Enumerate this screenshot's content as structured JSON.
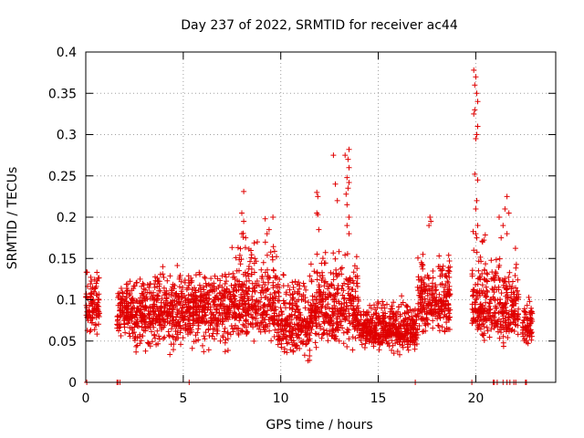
{
  "chart_data": {
    "type": "scatter",
    "title": "Day 237 of 2022, SRMTID for receiver ac44",
    "xlabel": "GPS time / hours",
    "ylabel": "SRMTID / TECUs",
    "xlim": [
      0,
      24.1
    ],
    "ylim": [
      0,
      0.4
    ],
    "x_ticks": [
      0,
      5,
      10,
      15,
      20
    ],
    "x_tick_labels": [
      "0",
      "5",
      "10",
      "15",
      "20"
    ],
    "y_ticks": [
      0,
      0.05,
      0.1,
      0.15,
      0.2,
      0.25,
      0.3,
      0.35,
      0.4
    ],
    "y_tick_labels": [
      "0",
      "0.05",
      "0.1",
      "0.15",
      "0.2",
      "0.25",
      "0.3",
      "0.35",
      "0.4"
    ],
    "grid": true,
    "marker": "plus",
    "series_color": "#e00000",
    "segments": [
      {
        "x_start": 0.0,
        "x_end": 0.7,
        "min": 0.05,
        "max": 0.15,
        "center": 0.09
      },
      {
        "x_start": 1.6,
        "x_end": 2.5,
        "min": 0.04,
        "max": 0.14,
        "center": 0.085
      },
      {
        "x_start": 2.5,
        "x_end": 5.0,
        "min": 0.03,
        "max": 0.15,
        "center": 0.085
      },
      {
        "x_start": 5.0,
        "x_end": 7.5,
        "min": 0.03,
        "max": 0.145,
        "center": 0.09
      },
      {
        "x_start": 7.5,
        "x_end": 9.8,
        "min": 0.04,
        "max": 0.2,
        "center": 0.095
      },
      {
        "x_start": 9.8,
        "x_end": 11.5,
        "min": 0.02,
        "max": 0.15,
        "center": 0.07
      },
      {
        "x_start": 11.5,
        "x_end": 12.5,
        "min": 0.04,
        "max": 0.17,
        "center": 0.085
      },
      {
        "x_start": 12.5,
        "x_end": 14.0,
        "min": 0.03,
        "max": 0.18,
        "center": 0.09
      },
      {
        "x_start": 14.0,
        "x_end": 17.0,
        "min": 0.03,
        "max": 0.11,
        "center": 0.065
      },
      {
        "x_start": 17.0,
        "x_end": 18.7,
        "min": 0.05,
        "max": 0.17,
        "center": 0.1
      },
      {
        "x_start": 19.8,
        "x_end": 21.0,
        "min": 0.04,
        "max": 0.2,
        "center": 0.09
      },
      {
        "x_start": 21.0,
        "x_end": 22.2,
        "min": 0.04,
        "max": 0.17,
        "center": 0.085
      },
      {
        "x_start": 22.4,
        "x_end": 22.9,
        "min": 0.04,
        "max": 0.11,
        "center": 0.07
      }
    ],
    "peaks": [
      [
        8.1,
        0.231
      ],
      [
        8.0,
        0.205
      ],
      [
        8.1,
        0.195
      ],
      [
        8.0,
        0.18
      ],
      [
        8.2,
        0.175
      ],
      [
        9.2,
        0.198
      ],
      [
        9.6,
        0.2
      ],
      [
        9.4,
        0.185
      ],
      [
        9.3,
        0.18
      ],
      [
        11.85,
        0.23
      ],
      [
        11.9,
        0.225
      ],
      [
        11.85,
        0.205
      ],
      [
        11.9,
        0.203
      ],
      [
        11.95,
        0.185
      ],
      [
        12.7,
        0.275
      ],
      [
        13.3,
        0.275
      ],
      [
        13.5,
        0.282
      ],
      [
        13.45,
        0.27
      ],
      [
        13.5,
        0.26
      ],
      [
        13.4,
        0.248
      ],
      [
        13.5,
        0.242
      ],
      [
        13.45,
        0.235
      ],
      [
        13.35,
        0.228
      ],
      [
        12.8,
        0.24
      ],
      [
        12.9,
        0.22
      ],
      [
        13.4,
        0.215
      ],
      [
        13.5,
        0.2
      ],
      [
        13.4,
        0.19
      ],
      [
        13.5,
        0.18
      ],
      [
        17.65,
        0.2
      ],
      [
        17.7,
        0.195
      ],
      [
        17.6,
        0.19
      ],
      [
        19.9,
        0.378
      ],
      [
        20.0,
        0.37
      ],
      [
        19.95,
        0.36
      ],
      [
        20.05,
        0.35
      ],
      [
        20.1,
        0.34
      ],
      [
        19.95,
        0.33
      ],
      [
        19.9,
        0.325
      ],
      [
        20.1,
        0.31
      ],
      [
        20.05,
        0.3
      ],
      [
        20.0,
        0.295
      ],
      [
        19.95,
        0.252
      ],
      [
        20.1,
        0.245
      ],
      [
        20.05,
        0.22
      ],
      [
        20.0,
        0.21
      ],
      [
        20.1,
        0.19
      ],
      [
        20.0,
        0.18
      ],
      [
        20.05,
        0.175
      ],
      [
        19.9,
        0.16
      ],
      [
        21.6,
        0.225
      ],
      [
        21.5,
        0.21
      ],
      [
        21.7,
        0.205
      ],
      [
        21.2,
        0.2
      ],
      [
        21.4,
        0.19
      ],
      [
        21.6,
        0.18
      ],
      [
        21.3,
        0.175
      ]
    ],
    "zero_points": [
      0.05,
      1.6,
      1.65,
      1.75,
      5.3,
      16.9,
      19.8,
      20.9,
      20.95,
      21.1,
      21.4,
      21.6,
      21.75,
      21.95,
      22.05,
      22.55,
      22.6
    ]
  }
}
